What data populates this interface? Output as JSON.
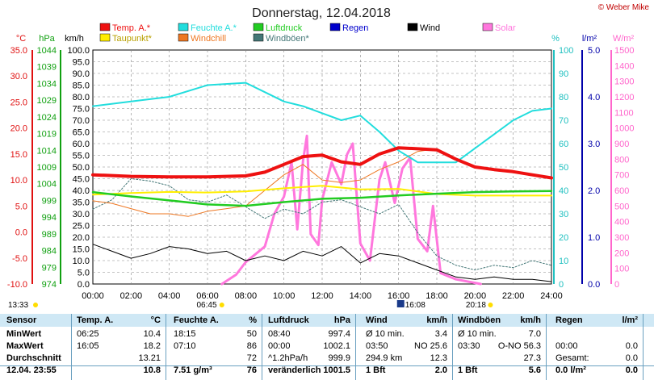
{
  "title": "Donnerstag, 12.04.2018",
  "credit": "© Weber Mike",
  "axis_units": {
    "temp": "°C",
    "pressure": "hPa",
    "wind": "km/h",
    "humidity": "%",
    "rain": "l/m²",
    "solar": "W/m²"
  },
  "legend": [
    {
      "label": "Temp. A.*",
      "color": "#ee1111"
    },
    {
      "label": "Feuchte A.*",
      "color": "#22dddd"
    },
    {
      "label": "Luftdruck",
      "color": "#22cc22"
    },
    {
      "label": "Regen",
      "color": "#0000cc"
    },
    {
      "label": "Wind",
      "color": "#000000"
    },
    {
      "label": "Solar",
      "color": "#ff77dd"
    },
    {
      "label": "Taupunkt*",
      "color": "#ffee00"
    },
    {
      "label": "Windchill",
      "color": "#ee7722"
    },
    {
      "label": "Windböen*",
      "color": "#447777"
    }
  ],
  "time_markers": {
    "now": "13:33",
    "sunrise": "06:45",
    "noon": "16:08",
    "sunset": "20:18"
  },
  "chart_data": {
    "type": "line",
    "title": "Donnerstag, 12.04.2018",
    "x_ticks": [
      "00:00",
      "02:00",
      "04:00",
      "06:00",
      "08:00",
      "10:00",
      "12:00",
      "14:00",
      "16:00",
      "18:00",
      "20:00",
      "22:00",
      "24:00"
    ],
    "axes": {
      "temp": {
        "unit": "°C",
        "range": [
          -10,
          35
        ],
        "ticks": [
          "35.0",
          "30.0",
          "25.0",
          "20.0",
          "15.0",
          "10.0",
          "5.0",
          "0.0",
          "-5.0",
          "-10.0"
        ]
      },
      "pressure": {
        "unit": "hPa",
        "range": [
          974,
          1044
        ],
        "ticks": [
          "1044",
          "1039",
          "1034",
          "1029",
          "1024",
          "1019",
          "1014",
          "1009",
          "1004",
          "999",
          "994",
          "989",
          "984",
          "979",
          "974"
        ]
      },
      "wind": {
        "unit": "km/h",
        "range": [
          0,
          100
        ],
        "ticks": [
          "100.0",
          "95.0",
          "90.0",
          "85.0",
          "80.0",
          "75.0",
          "70.0",
          "65.0",
          "60.0",
          "55.0",
          "50.0",
          "45.0",
          "40.0",
          "35.0",
          "30.0",
          "25.0",
          "20.0",
          "15.0",
          "10.0",
          "5.0",
          "0.0"
        ]
      },
      "humidity": {
        "unit": "%",
        "range": [
          0,
          100
        ],
        "ticks": [
          "100",
          "90",
          "80",
          "70",
          "60",
          "50",
          "40",
          "30",
          "20",
          "10",
          "0"
        ]
      },
      "rain": {
        "unit": "l/m²",
        "range": [
          0,
          5
        ],
        "ticks": [
          "5.0",
          "4.0",
          "3.0",
          "2.0",
          "1.0",
          "0.0"
        ]
      },
      "solar": {
        "unit": "W/m²",
        "range": [
          0,
          1500
        ],
        "ticks": [
          "1500",
          "1400",
          "1300",
          "1200",
          "1100",
          "1000",
          "900",
          "800",
          "700",
          "600",
          "500",
          "400",
          "300",
          "200",
          "100",
          "0"
        ]
      }
    },
    "series": [
      {
        "name": "Temp. A.*",
        "axis": "temp",
        "color": "#ee1111",
        "width": 4,
        "x": [
          0,
          2,
          4,
          6,
          8,
          9,
          10,
          11,
          12,
          13,
          14,
          15,
          16,
          17,
          18,
          19,
          20,
          21,
          22,
          23,
          24
        ],
        "y": [
          11.0,
          10.7,
          10.6,
          10.6,
          10.8,
          11.5,
          13.0,
          14.5,
          14.8,
          13.5,
          13.0,
          15.0,
          16.2,
          16.0,
          15.8,
          14.0,
          12.5,
          12.0,
          11.6,
          11.0,
          10.4
        ]
      },
      {
        "name": "Feuchte A.*",
        "axis": "humidity",
        "color": "#22dddd",
        "width": 2,
        "x": [
          0,
          2,
          4,
          6,
          8,
          9,
          10,
          11,
          12,
          13,
          14,
          15,
          16,
          17,
          18,
          19,
          20,
          21,
          22,
          23,
          24
        ],
        "y": [
          76,
          78,
          80,
          85,
          86,
          82,
          78,
          76,
          73,
          70,
          72,
          65,
          57,
          52,
          52,
          52,
          58,
          64,
          70,
          74,
          75
        ]
      },
      {
        "name": "Luftdruck",
        "axis": "pressure",
        "color": "#22cc22",
        "width": 2.5,
        "x": [
          0,
          2,
          4,
          6,
          8,
          10,
          12,
          14,
          16,
          18,
          20,
          22,
          24
        ],
        "y": [
          1001.5,
          1000.2,
          999.0,
          997.8,
          997.4,
          998.5,
          999.5,
          999.8,
          1000.5,
          1001.0,
          1001.5,
          1001.7,
          1001.8
        ]
      },
      {
        "name": "Taupunkt*",
        "axis": "temp",
        "color": "#ffee00",
        "width": 2,
        "x": [
          0,
          2,
          4,
          6,
          8,
          10,
          12,
          14,
          16,
          18,
          20,
          22,
          24
        ],
        "y": [
          7.2,
          7.5,
          7.7,
          7.6,
          7.8,
          8.4,
          8.9,
          8.2,
          8.3,
          7.3,
          7.0,
          7.0,
          7.0
        ]
      },
      {
        "name": "Windchill",
        "axis": "temp",
        "color": "#ee7722",
        "width": 1,
        "x": [
          0,
          1,
          2,
          3,
          4,
          5,
          6,
          7,
          8,
          9,
          10,
          11,
          12,
          13,
          14,
          15,
          16,
          17,
          18
        ],
        "y": [
          6.0,
          5.5,
          4.5,
          3.5,
          3.5,
          3.0,
          4.0,
          4.5,
          5.0,
          8.0,
          11.0,
          13.0,
          10.0,
          9.5,
          10.0,
          12.0,
          13.5,
          15.5,
          16.0
        ]
      },
      {
        "name": "Wind",
        "axis": "wind",
        "color": "#000000",
        "width": 1,
        "x": [
          0,
          1,
          2,
          3,
          4,
          5,
          6,
          7,
          8,
          9,
          10,
          11,
          12,
          13,
          14,
          15,
          16,
          17,
          18,
          19,
          20,
          21,
          22,
          23,
          24
        ],
        "y": [
          17,
          14,
          11,
          13,
          16,
          15,
          13,
          14,
          10,
          12,
          10,
          14,
          12,
          16,
          9,
          13,
          12,
          9,
          6,
          3,
          2,
          3,
          2,
          2,
          1
        ]
      },
      {
        "name": "Windböen*",
        "axis": "wind",
        "color": "#447777",
        "width": 1,
        "dash": "2,2",
        "x": [
          0,
          1,
          2,
          3,
          4,
          5,
          6,
          7,
          8,
          9,
          10,
          11,
          12,
          13,
          14,
          15,
          16,
          17,
          18,
          19,
          20,
          21,
          22,
          23,
          24
        ],
        "y": [
          32,
          36,
          45,
          44,
          42,
          36,
          35,
          38,
          33,
          28,
          32,
          30,
          35,
          36,
          33,
          30,
          34,
          22,
          12,
          8,
          6,
          8,
          7,
          10,
          8
        ]
      },
      {
        "name": "Solar",
        "axis": "solar",
        "color": "#ff77dd",
        "width": 3,
        "x": [
          6.75,
          7.5,
          8,
          9,
          9.5,
          10,
          10.4,
          10.7,
          11,
          11.2,
          11.4,
          11.8,
          12,
          12.5,
          13,
          13.3,
          13.6,
          14,
          14.5,
          15,
          15.3,
          15.8,
          16.2,
          16.6,
          17,
          17.5,
          17.8,
          18.2,
          19,
          20.3
        ],
        "y": [
          0,
          60,
          140,
          240,
          450,
          560,
          780,
          350,
          790,
          950,
          320,
          250,
          540,
          780,
          640,
          830,
          900,
          260,
          150,
          670,
          780,
          520,
          740,
          810,
          290,
          210,
          500,
          70,
          30,
          0
        ]
      }
    ]
  },
  "table": {
    "headers": [
      "Sensor",
      "Temp. A.",
      "°C",
      "Feuchte A.",
      "%",
      "Luftdruck",
      "hPa",
      "Wind",
      "km/h",
      "Windböen",
      "km/h",
      "Regen",
      "l/m²"
    ],
    "rows": [
      [
        "MinWert",
        "06:25",
        "10.4",
        "18:15",
        "50",
        "08:40",
        "997.4",
        "Ø 10 min.",
        "3.4",
        "Ø 10 min.",
        "7.0",
        "",
        ""
      ],
      [
        "MaxWert",
        "16:05",
        "18.2",
        "07:10",
        "86",
        "00:00",
        "1002.1",
        "03:50",
        "NO 25.6",
        "03:30",
        "O-NO 56.3",
        "00:00",
        "0.0"
      ],
      [
        "Durchschnitt",
        "",
        "13.21",
        "",
        "72",
        "^1.2hPa/h",
        "999.9",
        "294.9 km",
        "12.3",
        "",
        "27.3",
        "Gesamt:",
        "0.0"
      ],
      [
        "12.04. 23:55",
        "",
        "10.8",
        "7.51 g/m³",
        "76",
        "veränderlich",
        "1001.5",
        "1 Bft",
        "2.0",
        "1 Bft",
        "5.6",
        "0.0 l/m²",
        "0.0"
      ]
    ]
  }
}
